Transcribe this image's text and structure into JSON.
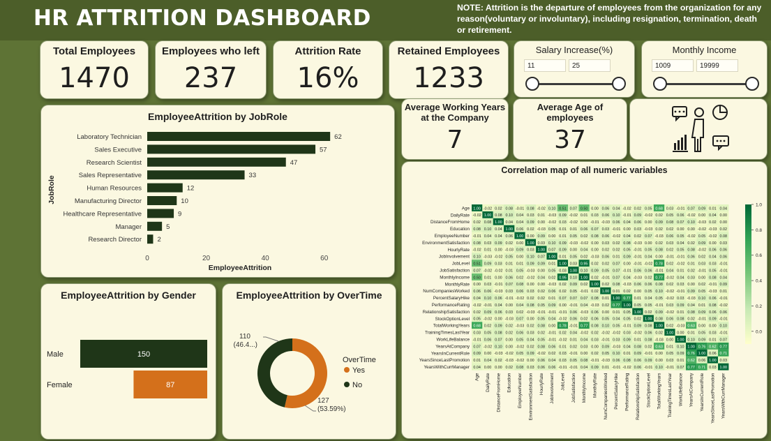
{
  "header": {
    "title": "HR ATTRITION DASHBOARD",
    "note": "NOTE: Attrition is the departure of employees from the organization for any reason(voluntary or involuntary), including resignation, termination, death or retirement."
  },
  "kpis": {
    "total_employees": {
      "label": "Total Employees",
      "value": "1470"
    },
    "employees_left": {
      "label": "Employees who left",
      "value": "237"
    },
    "attrition_rate": {
      "label": "Attrition Rate",
      "value": "16%"
    },
    "retained": {
      "label": "Retained Employees",
      "value": "1233"
    }
  },
  "slicers": {
    "salary": {
      "label": "Salary Increase(%)",
      "min": "11",
      "max": "25"
    },
    "income": {
      "label": "Monthly Income",
      "min": "1009",
      "max": "19999"
    }
  },
  "mid_kpis": {
    "avg_years": {
      "label": "Average Working Years at the Company",
      "value": "7"
    },
    "avg_age": {
      "label": "Average Age of employees",
      "value": "37"
    }
  },
  "icon": "employee-analytics-icon",
  "colors": {
    "dark_green": "#1f3618",
    "orange": "#d4701b",
    "background": "#5e7335",
    "card": "#fbf8e1"
  },
  "chart_data": [
    {
      "type": "bar",
      "title": "EmployeeAttrition by JobRole",
      "xlabel": "EmployeeAttrition",
      "ylabel": "JobRole",
      "categories": [
        "Laboratory Technician",
        "Sales Executive",
        "Research Scientist",
        "Sales Representative",
        "Human Resources",
        "Manufacturing Director",
        "Healthcare Representative",
        "Manager",
        "Research Director"
      ],
      "values": [
        62,
        57,
        47,
        33,
        12,
        10,
        9,
        5,
        2
      ],
      "xlim": [
        0,
        70
      ],
      "xticks": [
        "0",
        "20",
        "40",
        "60"
      ]
    },
    {
      "type": "bar",
      "title": "EmployeeAttrition by Gender",
      "categories": [
        "Male",
        "Female"
      ],
      "values": [
        150,
        87
      ],
      "colors": [
        "#1f3618",
        "#d4701b"
      ]
    },
    {
      "type": "pie",
      "title": "EmployeeAttrition by OverTime",
      "legend_title": "OverTime",
      "labels": [
        "Yes",
        "No"
      ],
      "values": [
        127,
        110
      ],
      "percent_labels": [
        "127\n(53.59%)",
        "110\n(46.4...)"
      ],
      "colors": [
        "#d4701b",
        "#1f3618"
      ],
      "legend": "right"
    },
    {
      "type": "heatmap",
      "title": "Correlation map of all numeric variables",
      "variables": [
        "Age",
        "DailyRate",
        "DistanceFromHome",
        "Education",
        "EmployeeNumber",
        "EnvironmentSatisfaction",
        "HourlyRate",
        "JobInvolvement",
        "JobLevel",
        "JobSatisfaction",
        "MonthlyIncome",
        "MonthlyRate",
        "NumCompaniesWorked",
        "PercentSalaryHike",
        "PerformanceRating",
        "RelationshipSatisfaction",
        "StockOptionLevel",
        "TotalWorkingYears",
        "TrainingTimesLastYear",
        "WorkLifeBalance",
        "YearsAtCompany",
        "YearsInCurrentRole",
        "YearsSinceLastPromotion",
        "YearsWithCurrManager"
      ],
      "highlighted_pairs": [
        {
          "a": "JobLevel",
          "b": "MonthlyIncome",
          "value": 0.95
        },
        {
          "a": "JobLevel",
          "b": "TotalWorkingYears",
          "value": 0.78
        },
        {
          "a": "MonthlyIncome",
          "b": "TotalWorkingYears",
          "value": 0.77
        },
        {
          "a": "PercentSalaryHike",
          "b": "PerformanceRating",
          "value": 0.77
        },
        {
          "a": "YearsAtCompany",
          "b": "YearsInCurrentRole",
          "value": 0.76
        },
        {
          "a": "YearsAtCompany",
          "b": "YearsWithCurrManager",
          "value": 0.77
        },
        {
          "a": "YearsInCurrentRole",
          "b": "YearsWithCurrManager",
          "value": 0.71
        },
        {
          "a": "Age",
          "b": "TotalWorkingYears",
          "value": 0.68
        },
        {
          "a": "TotalWorkingYears",
          "b": "YearsAtCompany",
          "value": 0.63
        },
        {
          "a": "YearsAtCompany",
          "b": "YearsSinceLastPromotion",
          "value": 0.62
        },
        {
          "a": "Age",
          "b": "MonthlyIncome",
          "value": 0.5
        },
        {
          "a": "Age",
          "b": "JobLevel",
          "value": 0.51
        }
      ],
      "colorbar_ticks": [
        "1.0",
        "0.8",
        "0.6",
        "0.4",
        "0.2",
        "0.0"
      ],
      "vmin": -0.1,
      "vmax": 1.0
    }
  ]
}
